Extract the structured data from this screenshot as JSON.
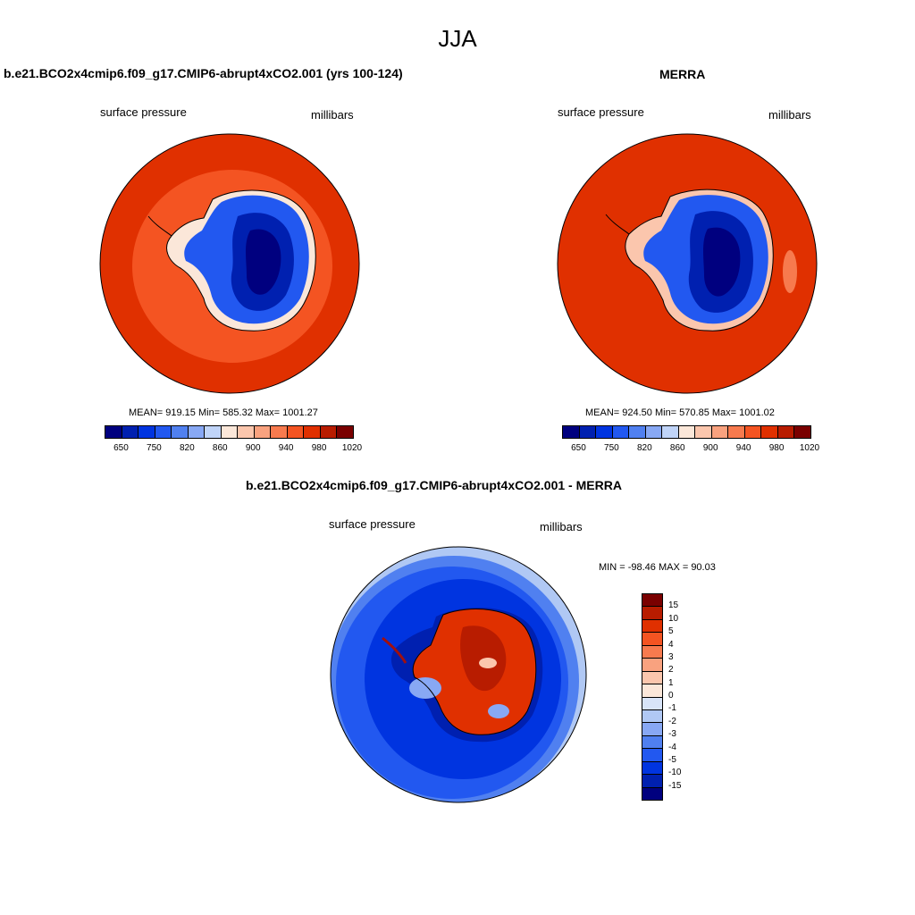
{
  "page": {
    "title": "JJA"
  },
  "panels": {
    "model": {
      "title": "b.e21.BCO2x4cmip6.f09_g17.CMIP6-abrupt4xCO2.001 (yrs 100-124)",
      "left_label": "surface pressure",
      "right_label": "millibars",
      "stats": "MEAN= 919.15  Min= 585.32  Max= 1001.27"
    },
    "obs": {
      "title": "MERRA",
      "left_label": "surface pressure",
      "right_label": "millibars",
      "stats": "MEAN= 924.50  Min= 570.85  Max= 1001.02"
    },
    "diff": {
      "title": "b.e21.BCO2x4cmip6.f09_g17.CMIP6-abrupt4xCO2.001 - MERRA",
      "left_label": "surface pressure",
      "right_label": "millibars",
      "stats": "MIN = -98.46 MAX =  90.03"
    }
  },
  "colorbar_abs": {
    "ticks": [
      "650",
      "750",
      "820",
      "860",
      "900",
      "940",
      "980",
      "1020"
    ],
    "colors": [
      "#00007f",
      "#0020b0",
      "#0034e0",
      "#2258f0",
      "#5080f0",
      "#88a8f4",
      "#c0d4f8",
      "#fbe7d9",
      "#fbc6ad",
      "#f9a27f",
      "#f77a4e",
      "#f45422",
      "#e03000",
      "#b81c00",
      "#7a0000"
    ]
  },
  "colorbar_diff": {
    "ticks": [
      "15",
      "10",
      "5",
      "4",
      "3",
      "2",
      "1",
      "0",
      "-1",
      "-2",
      "-3",
      "-4",
      "-5",
      "-10",
      "-15"
    ],
    "colors": [
      "#7a0000",
      "#b81c00",
      "#e03000",
      "#f45422",
      "#f77a4e",
      "#f9a27f",
      "#fbc6ad",
      "#fbe7d9",
      "#d8e4f8",
      "#b0c8f4",
      "#88a8f4",
      "#5080f0",
      "#2258f0",
      "#0034e0",
      "#0020b0",
      "#00007f"
    ]
  },
  "chart_data": [
    {
      "type": "heatmap",
      "title": "b.e21.BCO2x4cmip6.f09_g17.CMIP6-abrupt4xCO2.001 (yrs 100-124)",
      "variable": "surface pressure",
      "units": "millibars",
      "mean": 919.15,
      "min": 585.32,
      "max": 1001.27,
      "levels": [
        650,
        750,
        820,
        860,
        900,
        940,
        980,
        1020
      ]
    },
    {
      "type": "heatmap",
      "title": "MERRA",
      "variable": "surface pressure",
      "units": "millibars",
      "mean": 924.5,
      "min": 570.85,
      "max": 1001.02,
      "levels": [
        650,
        750,
        820,
        860,
        900,
        940,
        980,
        1020
      ]
    },
    {
      "type": "heatmap",
      "title": "b.e21.BCO2x4cmip6.f09_g17.CMIP6-abrupt4xCO2.001 - MERRA",
      "variable": "surface pressure",
      "units": "millibars",
      "min": -98.46,
      "max": 90.03,
      "levels": [
        -15,
        -10,
        -5,
        -4,
        -3,
        -2,
        -1,
        0,
        1,
        2,
        3,
        4,
        5,
        10,
        15
      ]
    }
  ]
}
